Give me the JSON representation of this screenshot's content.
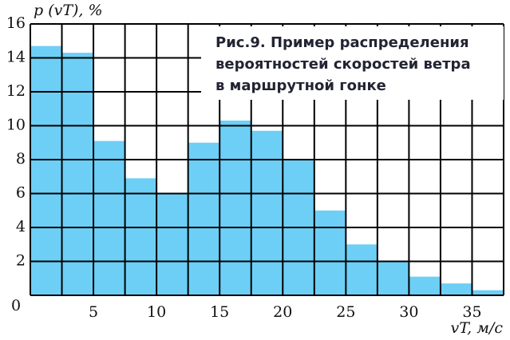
{
  "chart_data": {
    "type": "histogram",
    "title_lines": [
      "Рис.9. Пример распределения",
      "вероятностей скоростей ветра",
      "в маршрутной гонке"
    ],
    "y_label": "p (vT), %",
    "x_label": "vT, м/с",
    "bins": [
      0,
      2.5,
      5,
      7.5,
      10,
      12.5,
      15,
      17.5,
      20,
      22.5,
      25,
      27.5,
      30,
      32.5,
      35,
      37.5
    ],
    "values": [
      14.7,
      14.3,
      9.1,
      6.9,
      6.0,
      9.0,
      10.3,
      9.7,
      8.0,
      5.0,
      3.0,
      2.0,
      1.1,
      0.7,
      0.3
    ],
    "color": "#6dcff6",
    "xlim": [
      0,
      37.5
    ],
    "xticks": [
      5,
      10,
      15,
      20,
      25,
      30,
      35
    ],
    "ylim": [
      0,
      16
    ],
    "yticks": [
      0,
      2,
      4,
      6,
      8,
      10,
      12,
      14,
      16
    ],
    "grid": true
  }
}
